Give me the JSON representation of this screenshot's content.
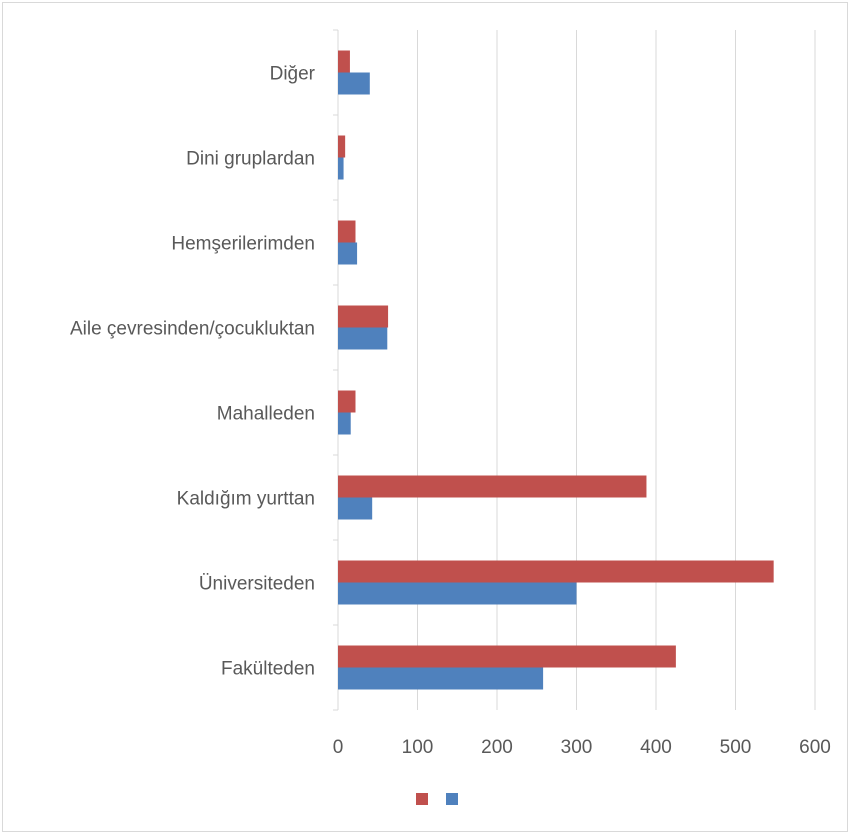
{
  "chart_data": {
    "type": "bar",
    "orientation": "horizontal",
    "categories": [
      "Diğer",
      "Dini gruplardan",
      "Hemşerilerimden",
      "Aile çevresinden/çocukluktan",
      "Mahalleden",
      "Kaldığım yurttan",
      "Üniversiteden",
      "Fakülteden"
    ],
    "series": [
      {
        "color": "#c0504d",
        "values": [
          15,
          9,
          22,
          63,
          22,
          388,
          548,
          425
        ]
      },
      {
        "color": "#4f81bd",
        "values": [
          40,
          7,
          24,
          62,
          16,
          43,
          300,
          258
        ]
      }
    ],
    "xlim": [
      0,
      600
    ],
    "xticks": [
      "0",
      "100",
      "200",
      "300",
      "400",
      "500",
      "600"
    ],
    "grid": true,
    "legend": "bottom",
    "title": "",
    "xlabel": "",
    "ylabel": ""
  }
}
